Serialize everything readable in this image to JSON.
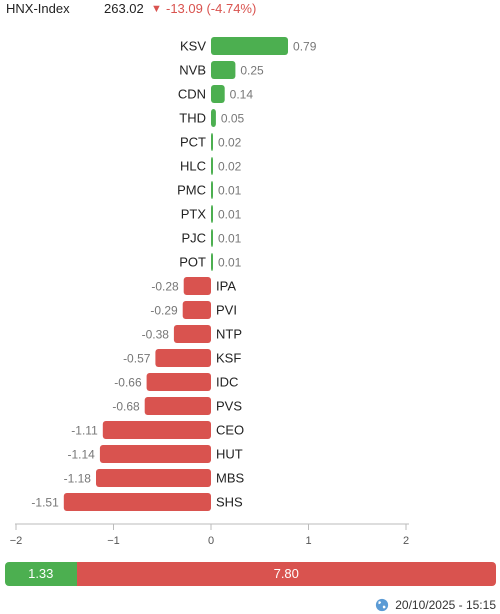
{
  "header": {
    "index_name": "HNX-Index",
    "value": "263.02",
    "change": "-13.09 (-4.74%)",
    "direction_icon": "triangle-down-icon"
  },
  "colors": {
    "positive": "#4caf50",
    "negative": "#d9534f",
    "text": "#222222",
    "value_label": "#777777",
    "axis": "#bbbbbb"
  },
  "chart_data": {
    "type": "bar",
    "orientation": "horizontal",
    "categories": [
      "KSV",
      "NVB",
      "CDN",
      "THD",
      "PCT",
      "HLC",
      "PMC",
      "PTX",
      "PJC",
      "POT",
      "IPA",
      "PVI",
      "NTP",
      "KSF",
      "IDC",
      "PVS",
      "CEO",
      "HUT",
      "MBS",
      "SHS"
    ],
    "values": [
      0.79,
      0.25,
      0.14,
      0.05,
      0.02,
      0.02,
      0.01,
      0.01,
      0.01,
      0.01,
      -0.28,
      -0.29,
      -0.38,
      -0.57,
      -0.66,
      -0.68,
      -1.11,
      -1.14,
      -1.18,
      -1.51
    ],
    "value_labels": [
      "0.79",
      "0.25",
      "0.14",
      "0.05",
      "0.02",
      "0.02",
      "0.01",
      "0.01",
      "0.01",
      "0.01",
      "-0.28",
      "-0.29",
      "-0.38",
      "-0.57",
      "-0.66",
      "-0.68",
      "-1.11",
      "-1.14",
      "-1.18",
      "-1.51"
    ],
    "xlim": [
      -2,
      2
    ],
    "x_ticks": [
      -2,
      -1,
      0,
      1,
      2
    ],
    "x_tick_labels": [
      "−2",
      "−1",
      "0",
      "1",
      "2"
    ],
    "grid": false
  },
  "breadth": {
    "positive_value": 1.33,
    "negative_value": 7.8,
    "positive_label": "1.33",
    "negative_label": "7.80"
  },
  "footer": {
    "timestamp": "20/10/2025 - 15:15",
    "icon": "globe-icon"
  }
}
